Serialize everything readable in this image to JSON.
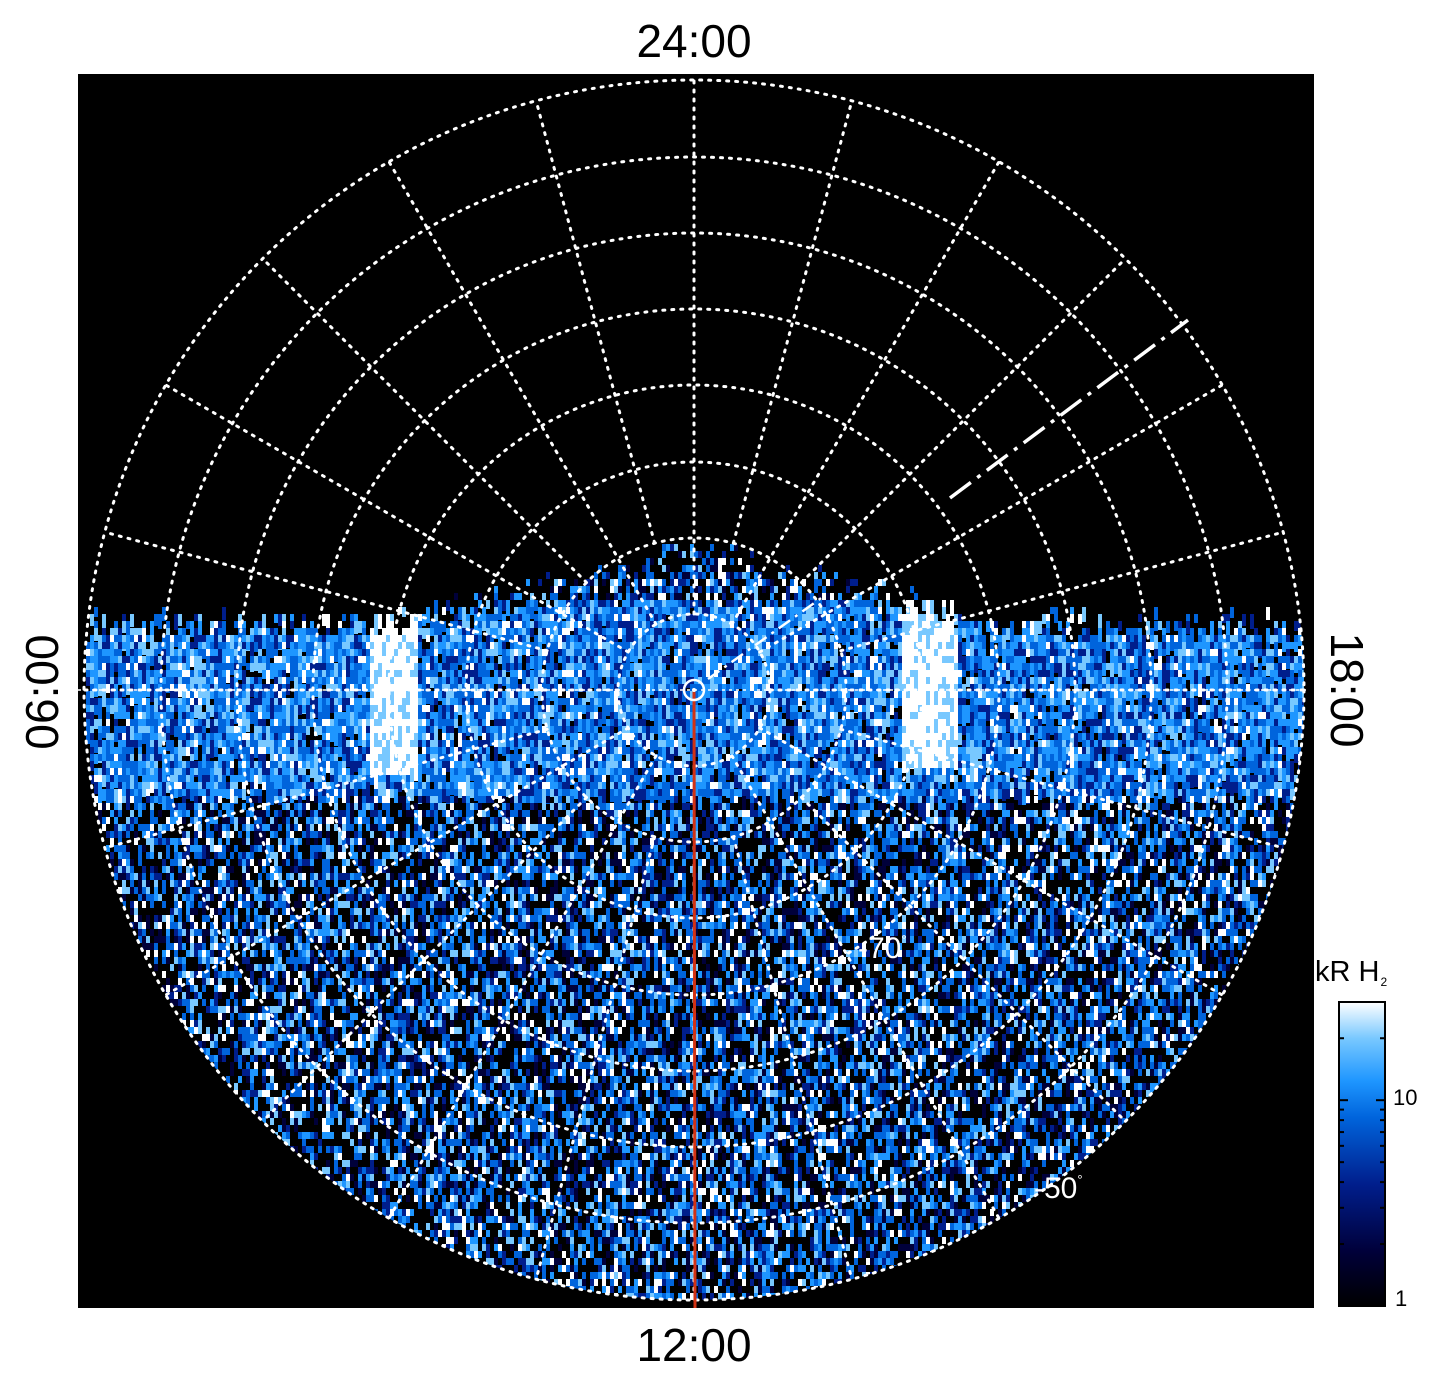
{
  "local_time_labels": {
    "top": "24:00",
    "bottom": "12:00",
    "left": "06:00",
    "right": "18:00"
  },
  "latitude_labels": {
    "inner": "-70",
    "outer": "-50",
    "degree_symbol": "°"
  },
  "colorbar": {
    "title": "kR H",
    "title_sub": "2",
    "scale": "log",
    "range": [
      1,
      30
    ],
    "tick_labels": [
      "10",
      "1"
    ],
    "colors": [
      "#000000",
      "#00003a",
      "#001e8c",
      "#0064dc",
      "#1e96ff",
      "#78c8ff",
      "#ffffff"
    ]
  },
  "colors": {
    "background": "#000000",
    "grid": "#ffffff",
    "meridian_line": "#d23214"
  }
}
